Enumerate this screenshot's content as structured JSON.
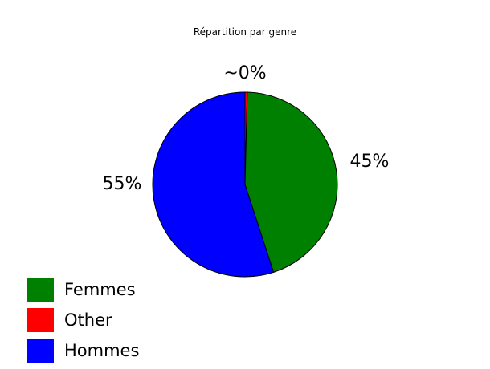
{
  "chart_data": {
    "type": "pie",
    "title": "Répartition par genre",
    "start": "top, clockwise",
    "slices": [
      {
        "name": "Other",
        "value": 0.4,
        "label": "~0%",
        "color": "#ff0000"
      },
      {
        "name": "Femmes",
        "value": 44.6,
        "label": "45%",
        "color": "#008000"
      },
      {
        "name": "Hommes",
        "value": 55.0,
        "label": "55%",
        "color": "#0000ff"
      }
    ],
    "legend": {
      "placement": "bottom-left",
      "order": [
        "Femmes",
        "Other",
        "Hommes"
      ]
    }
  }
}
